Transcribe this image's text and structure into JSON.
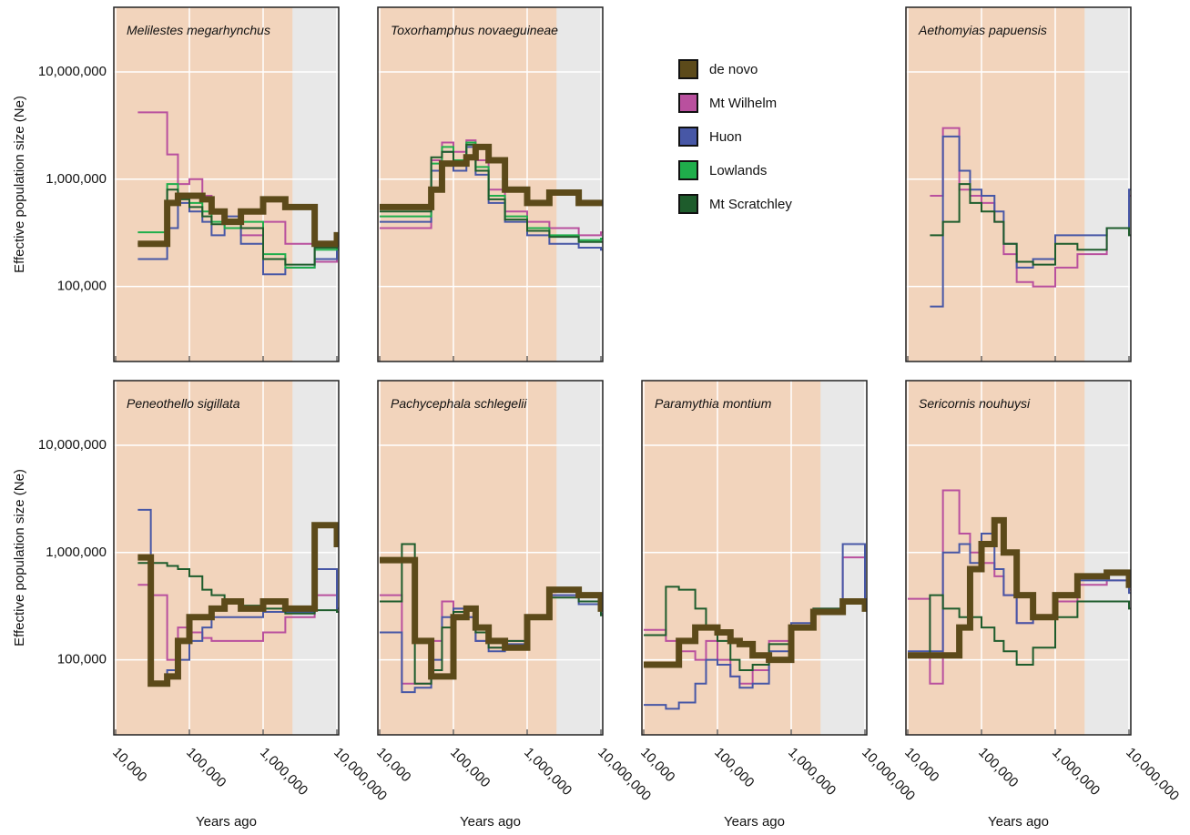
{
  "legend": {
    "items": [
      {
        "name": "de novo",
        "color": "#5c4a1a"
      },
      {
        "name": "Mt Wilhelm",
        "color": "#b9509e"
      },
      {
        "name": "Huon",
        "color": "#4757a6"
      },
      {
        "name": "Lowlands",
        "color": "#1fae4b"
      },
      {
        "name": "Mt Scratchley",
        "color": "#1e5c2c"
      }
    ]
  },
  "chart_data": [
    {
      "type": "step",
      "title": "Melilestes megarhynchus",
      "ylabel": "Effective population size (Ne)",
      "xlim": [
        10000,
        10000000
      ],
      "ylim": [
        20000,
        40000000
      ],
      "shaded_until": 2500000,
      "xticks": [
        10000,
        100000,
        1000000,
        10000000
      ],
      "yticks": [
        {
          "value": 100000,
          "label": "100,000"
        },
        {
          "value": 1000000,
          "label": "1,000,000"
        },
        {
          "value": 10000000,
          "label": "10,000,000"
        }
      ],
      "x": [
        10000,
        20000,
        30000,
        50000,
        70000,
        100000,
        150000,
        200000,
        300000,
        500000,
        1000000,
        2000000,
        5000000,
        10000000
      ],
      "series": [
        {
          "name": "Mt Wilhelm",
          "values": [
            null,
            4200000,
            4200000,
            1700000,
            900000,
            1000000,
            700000,
            500000,
            400000,
            300000,
            400000,
            250000,
            170000,
            230000
          ]
        },
        {
          "name": "Huon",
          "values": [
            null,
            180000,
            180000,
            350000,
            600000,
            500000,
            400000,
            300000,
            450000,
            250000,
            130000,
            150000,
            180000,
            220000
          ]
        },
        {
          "name": "Lowlands",
          "values": [
            null,
            320000,
            320000,
            900000,
            700000,
            600000,
            500000,
            400000,
            350000,
            400000,
            200000,
            150000,
            220000,
            250000
          ]
        },
        {
          "name": "Mt Scratchley",
          "values": [
            null,
            250000,
            250000,
            800000,
            650000,
            550000,
            450000,
            380000,
            420000,
            350000,
            180000,
            160000,
            230000,
            240000
          ]
        },
        {
          "name": "de novo",
          "values": [
            null,
            250000,
            250000,
            600000,
            700000,
            700000,
            650000,
            500000,
            400000,
            500000,
            650000,
            550000,
            250000,
            300000
          ]
        }
      ]
    },
    {
      "type": "step",
      "title": "Toxorhamphus novaeguineae",
      "xlim": [
        10000,
        10000000
      ],
      "ylim": [
        20000,
        40000000
      ],
      "shaded_until": 2500000,
      "xticks": [
        10000,
        100000,
        1000000,
        10000000
      ],
      "yticks": [
        100000,
        1000000,
        10000000
      ],
      "x": [
        10000,
        20000,
        30000,
        50000,
        70000,
        100000,
        150000,
        200000,
        300000,
        500000,
        1000000,
        2000000,
        5000000,
        10000000
      ],
      "series": [
        {
          "name": "Mt Wilhelm",
          "values": [
            350000,
            350000,
            350000,
            1500000,
            2200000,
            1800000,
            2300000,
            1500000,
            800000,
            500000,
            400000,
            350000,
            300000,
            320000
          ]
        },
        {
          "name": "Huon",
          "values": [
            400000,
            400000,
            400000,
            1200000,
            1800000,
            1200000,
            2000000,
            1100000,
            600000,
            400000,
            300000,
            250000,
            230000,
            220000
          ]
        },
        {
          "name": "Lowlands",
          "values": [
            450000,
            450000,
            450000,
            1400000,
            2000000,
            1500000,
            2200000,
            1300000,
            700000,
            450000,
            350000,
            300000,
            270000,
            280000
          ]
        },
        {
          "name": "Mt Scratchley",
          "values": [
            500000,
            500000,
            500000,
            1600000,
            1800000,
            1400000,
            2100000,
            1200000,
            650000,
            420000,
            330000,
            290000,
            260000,
            260000
          ]
        },
        {
          "name": "de novo",
          "values": [
            550000,
            550000,
            550000,
            800000,
            1400000,
            1400000,
            1600000,
            2000000,
            1500000,
            800000,
            600000,
            750000,
            600000,
            600000
          ]
        }
      ]
    },
    {
      "type": "step",
      "title": "Aethomyias papuensis",
      "xlim": [
        10000,
        10000000
      ],
      "ylim": [
        20000,
        40000000
      ],
      "shaded_until": 2500000,
      "xticks": [
        10000,
        100000,
        1000000,
        10000000
      ],
      "yticks": [
        100000,
        1000000,
        10000000
      ],
      "x": [
        10000,
        20000,
        30000,
        50000,
        70000,
        100000,
        150000,
        200000,
        300000,
        500000,
        1000000,
        2000000,
        5000000,
        10000000
      ],
      "series": [
        {
          "name": "Mt Wilhelm",
          "values": [
            null,
            700000,
            3000000,
            800000,
            700000,
            600000,
            400000,
            200000,
            110000,
            100000,
            150000,
            200000,
            350000,
            700000
          ]
        },
        {
          "name": "Huon",
          "values": [
            null,
            65000,
            2500000,
            1200000,
            800000,
            700000,
            500000,
            250000,
            150000,
            180000,
            300000,
            300000,
            350000,
            800000
          ]
        },
        {
          "name": "Mt Scratchley",
          "values": [
            null,
            300000,
            400000,
            900000,
            600000,
            500000,
            400000,
            250000,
            170000,
            160000,
            250000,
            220000,
            350000,
            300000
          ]
        }
      ]
    },
    {
      "type": "step",
      "title": "Peneothello sigillata",
      "ylabel": "Effective population size (Ne)",
      "xlabel": "Years ago",
      "xlim": [
        10000,
        10000000
      ],
      "ylim": [
        20000,
        40000000
      ],
      "shaded_until": 2500000,
      "xticks": [
        {
          "value": 10000,
          "label": "10,000"
        },
        {
          "value": 100000,
          "label": "100,000"
        },
        {
          "value": 1000000,
          "label": "1,000,000"
        },
        {
          "value": 10000000,
          "label": "10,000,000"
        }
      ],
      "yticks": [
        {
          "value": 100000,
          "label": "100,000"
        },
        {
          "value": 1000000,
          "label": "1,000,000"
        },
        {
          "value": 10000000,
          "label": "10,000,000"
        }
      ],
      "x": [
        10000,
        20000,
        30000,
        50000,
        70000,
        100000,
        150000,
        200000,
        300000,
        500000,
        1000000,
        2000000,
        5000000,
        10000000
      ],
      "series": [
        {
          "name": "Mt Wilhelm",
          "values": [
            null,
            500000,
            400000,
            100000,
            200000,
            180000,
            160000,
            150000,
            150000,
            150000,
            180000,
            250000,
            400000,
            300000
          ]
        },
        {
          "name": "Huon",
          "values": [
            null,
            2500000,
            60000,
            80000,
            100000,
            150000,
            200000,
            250000,
            250000,
            250000,
            280000,
            280000,
            700000,
            300000
          ]
        },
        {
          "name": "Mt Scratchley",
          "values": [
            null,
            800000,
            800000,
            750000,
            700000,
            600000,
            450000,
            400000,
            350000,
            320000,
            300000,
            270000,
            290000,
            280000
          ]
        },
        {
          "name": "de novo",
          "values": [
            null,
            900000,
            60000,
            70000,
            150000,
            250000,
            250000,
            300000,
            350000,
            300000,
            350000,
            300000,
            1800000,
            1200000
          ]
        }
      ]
    },
    {
      "type": "step",
      "title": "Pachycephala schlegelii",
      "xlabel": "Years ago",
      "xlim": [
        10000,
        10000000
      ],
      "ylim": [
        20000,
        40000000
      ],
      "shaded_until": 2500000,
      "xticks": [
        {
          "value": 10000,
          "label": "10,000"
        },
        {
          "value": 100000,
          "label": "100,000"
        },
        {
          "value": 1000000,
          "label": "1,000,000"
        },
        {
          "value": 10000000,
          "label": "10,000,000"
        }
      ],
      "yticks": [
        100000,
        1000000,
        10000000
      ],
      "x": [
        10000,
        20000,
        30000,
        50000,
        70000,
        100000,
        150000,
        200000,
        300000,
        500000,
        1000000,
        2000000,
        5000000,
        10000000
      ],
      "series": [
        {
          "name": "Mt Wilhelm",
          "values": [
            400000,
            60000,
            60000,
            150000,
            350000,
            300000,
            250000,
            150000,
            130000,
            150000,
            250000,
            400000,
            350000,
            300000
          ]
        },
        {
          "name": "Huon",
          "values": [
            180000,
            50000,
            55000,
            100000,
            250000,
            300000,
            250000,
            150000,
            120000,
            140000,
            250000,
            400000,
            330000,
            270000
          ]
        },
        {
          "name": "Mt Scratchley",
          "values": [
            350000,
            1200000,
            60000,
            80000,
            200000,
            280000,
            300000,
            180000,
            130000,
            150000,
            250000,
            380000,
            350000,
            260000
          ]
        },
        {
          "name": "de novo",
          "values": [
            850000,
            850000,
            150000,
            70000,
            70000,
            250000,
            300000,
            200000,
            150000,
            130000,
            250000,
            450000,
            400000,
            300000
          ]
        }
      ]
    },
    {
      "type": "step",
      "title": "Paramythia montium",
      "xlabel": "Years ago",
      "xlim": [
        10000,
        10000000
      ],
      "ylim": [
        20000,
        40000000
      ],
      "shaded_until": 2500000,
      "xticks": [
        {
          "value": 10000,
          "label": "10,000"
        },
        {
          "value": 100000,
          "label": "100,000"
        },
        {
          "value": 1000000,
          "label": "1,000,000"
        },
        {
          "value": 10000000,
          "label": "10,000,000"
        }
      ],
      "yticks": [
        100000,
        1000000,
        10000000
      ],
      "x": [
        10000,
        20000,
        30000,
        50000,
        70000,
        100000,
        150000,
        200000,
        300000,
        500000,
        1000000,
        2000000,
        5000000,
        10000000
      ],
      "series": [
        {
          "name": "Mt Wilhelm",
          "values": [
            190000,
            150000,
            120000,
            100000,
            150000,
            100000,
            70000,
            60000,
            80000,
            150000,
            200000,
            300000,
            900000,
            300000
          ]
        },
        {
          "name": "Huon",
          "values": [
            38000,
            35000,
            40000,
            60000,
            100000,
            90000,
            70000,
            55000,
            60000,
            120000,
            220000,
            280000,
            1200000,
            350000
          ]
        },
        {
          "name": "Mt Scratchley",
          "values": [
            170000,
            480000,
            450000,
            300000,
            200000,
            150000,
            100000,
            80000,
            90000,
            140000,
            200000,
            300000,
            350000,
            300000
          ]
        },
        {
          "name": "de novo",
          "values": [
            90000,
            90000,
            150000,
            200000,
            200000,
            180000,
            150000,
            140000,
            110000,
            100000,
            200000,
            280000,
            350000,
            300000
          ]
        }
      ]
    },
    {
      "type": "step",
      "title": "Sericornis nouhuysi",
      "xlabel": "Years ago",
      "xlim": [
        10000,
        10000000
      ],
      "ylim": [
        20000,
        40000000
      ],
      "shaded_until": 2500000,
      "xticks": [
        {
          "value": 10000,
          "label": "10,000"
        },
        {
          "value": 100000,
          "label": "100,000"
        },
        {
          "value": 1000000,
          "label": "1,000,000"
        },
        {
          "value": 10000000,
          "label": "10,000,000"
        }
      ],
      "yticks": [
        100000,
        1000000,
        10000000
      ],
      "x": [
        10000,
        20000,
        30000,
        50000,
        70000,
        100000,
        150000,
        200000,
        300000,
        500000,
        1000000,
        2000000,
        5000000,
        10000000
      ],
      "series": [
        {
          "name": "Mt Wilhelm",
          "values": [
            370000,
            60000,
            3800000,
            1500000,
            1000000,
            800000,
            600000,
            400000,
            220000,
            250000,
            350000,
            500000,
            550000,
            450000
          ]
        },
        {
          "name": "Huon",
          "values": [
            120000,
            120000,
            1000000,
            1200000,
            800000,
            1500000,
            700000,
            400000,
            220000,
            250000,
            400000,
            550000,
            550000,
            420000
          ]
        },
        {
          "name": "Mt Scratchley",
          "values": [
            110000,
            400000,
            300000,
            250000,
            250000,
            200000,
            150000,
            120000,
            90000,
            130000,
            250000,
            350000,
            350000,
            300000
          ]
        },
        {
          "name": "de novo",
          "values": [
            110000,
            110000,
            110000,
            200000,
            700000,
            1200000,
            2000000,
            1000000,
            400000,
            250000,
            400000,
            600000,
            650000,
            500000
          ]
        }
      ]
    }
  ]
}
